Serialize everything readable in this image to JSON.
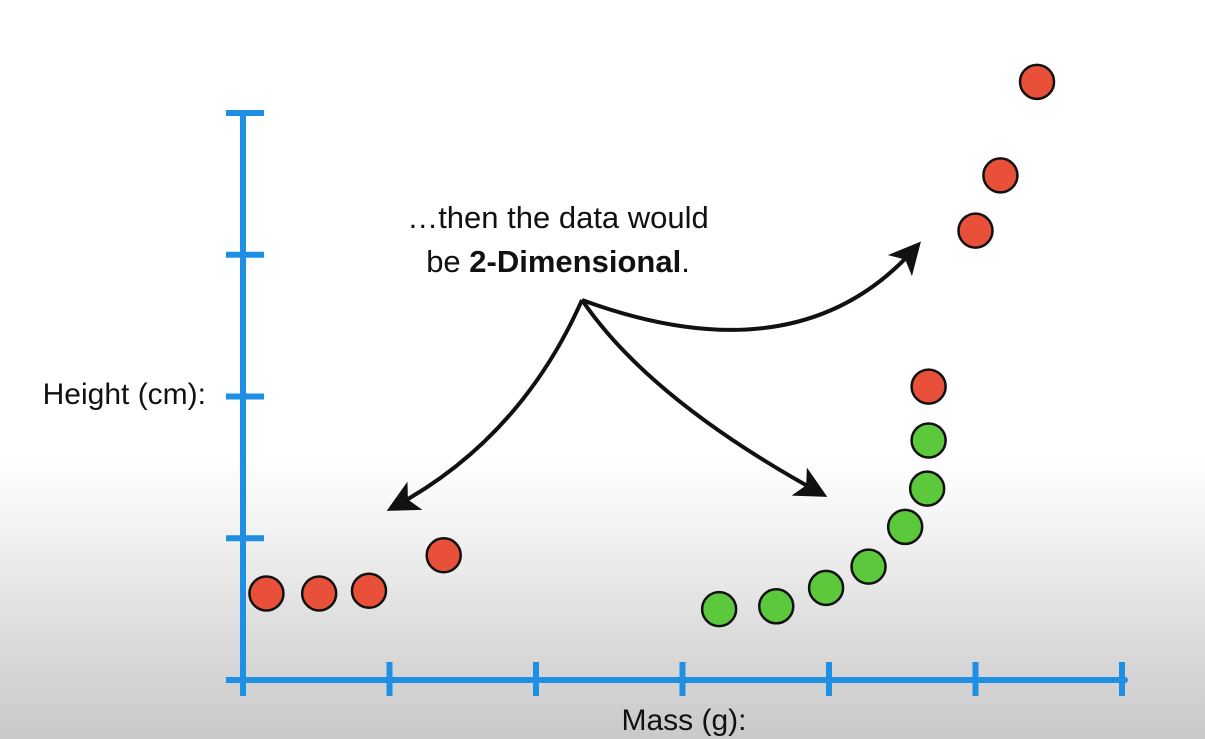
{
  "chart_data": {
    "type": "scatter",
    "xlabel": "Mass (g):",
    "ylabel": "Height (cm):",
    "x_ticks": [
      0,
      1,
      2,
      3,
      4,
      5,
      6
    ],
    "y_ticks": [
      0,
      1,
      2,
      3,
      4
    ],
    "xlim": [
      0,
      6
    ],
    "ylim": [
      0,
      4
    ],
    "grid": false,
    "annotation": {
      "line1": "…then the data would",
      "line2_prefix": "be ",
      "line2_bold": "2-Dimensional",
      "line2_suffix": "."
    },
    "series": [
      {
        "color": "#e8503a",
        "points": [
          {
            "x": 0.16,
            "y": 0.61
          },
          {
            "x": 0.52,
            "y": 0.61
          },
          {
            "x": 0.86,
            "y": 0.63
          },
          {
            "x": 1.37,
            "y": 0.88
          },
          {
            "x": 4.68,
            "y": 2.07
          },
          {
            "x": 5.0,
            "y": 3.17
          },
          {
            "x": 5.17,
            "y": 3.56
          },
          {
            "x": 5.42,
            "y": 4.22
          }
        ]
      },
      {
        "color": "#5cc93c",
        "points": [
          {
            "x": 3.25,
            "y": 0.5
          },
          {
            "x": 3.64,
            "y": 0.52
          },
          {
            "x": 3.98,
            "y": 0.65
          },
          {
            "x": 4.27,
            "y": 0.8
          },
          {
            "x": 4.52,
            "y": 1.08
          },
          {
            "x": 4.67,
            "y": 1.35
          },
          {
            "x": 4.68,
            "y": 1.69
          }
        ]
      }
    ]
  }
}
